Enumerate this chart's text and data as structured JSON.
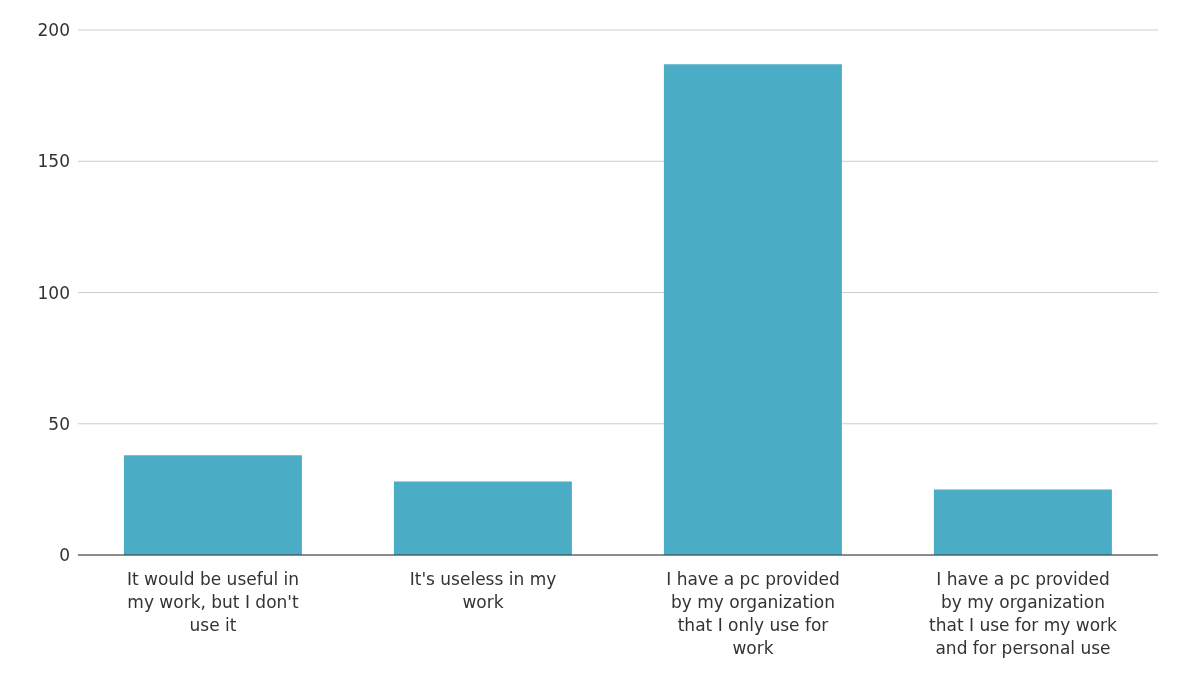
{
  "chart_data": {
    "type": "bar",
    "categories": [
      "It would be useful in my work, but I don't use it",
      "It's useless in my work",
      "I have a pc provided by my organization that I only use for work",
      "I have a pc provided by my organization that I use for my work and for personal use"
    ],
    "values": [
      38,
      28,
      187,
      25
    ],
    "color": "#4bacc6",
    "ylim": [
      0,
      200
    ],
    "yticks": [
      0,
      50,
      100,
      150,
      200
    ],
    "grid": "y"
  }
}
